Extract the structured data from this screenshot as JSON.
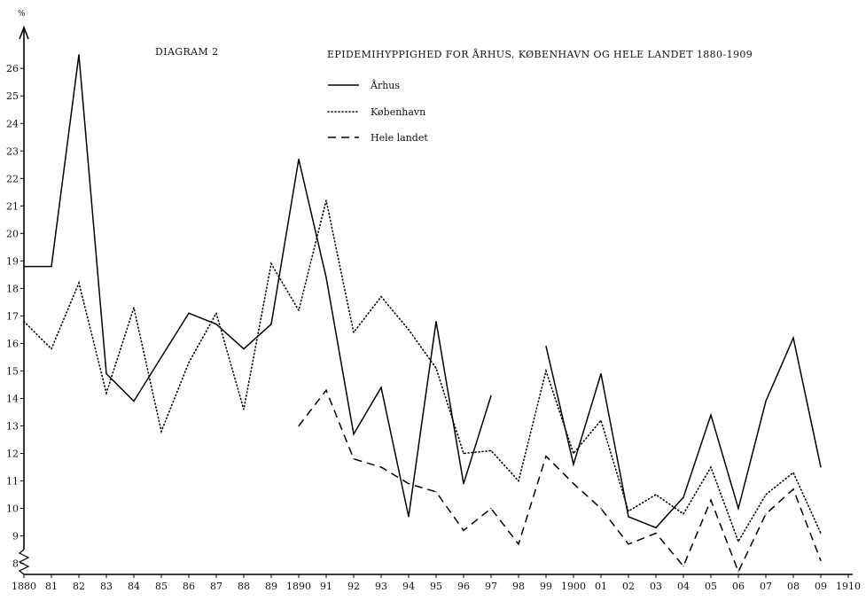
{
  "chart_data": {
    "type": "line",
    "label": "DIAGRAM 2",
    "title": "EPIDEMIHYPPIGHED FOR ÅRHUS, KØBENHAVN OG HELE LANDET 1880-1909",
    "ylabel": "%",
    "ylim": [
      7.6,
      27.2
    ],
    "xlim": [
      1880,
      1910
    ],
    "y_ticks": [
      8,
      9,
      10,
      11,
      12,
      13,
      14,
      15,
      16,
      17,
      18,
      19,
      20,
      21,
      22,
      23,
      24,
      25,
      26
    ],
    "x_ticks": [
      1880,
      1881,
      1882,
      1883,
      1884,
      1885,
      1886,
      1887,
      1888,
      1889,
      1890,
      1891,
      1892,
      1893,
      1894,
      1895,
      1896,
      1897,
      1898,
      1899,
      1900,
      1901,
      1902,
      1903,
      1904,
      1905,
      1906,
      1907,
      1908,
      1909,
      1910
    ],
    "x_tick_labels": [
      "1880",
      "81",
      "82",
      "83",
      "84",
      "85",
      "86",
      "87",
      "88",
      "89",
      "1890",
      "91",
      "92",
      "93",
      "94",
      "95",
      "96",
      "97",
      "98",
      "99",
      "1900",
      "01",
      "02",
      "03",
      "04",
      "05",
      "06",
      "07",
      "08",
      "09",
      "1910"
    ],
    "grid": false,
    "legend_position": "top-center",
    "series": [
      {
        "name": "Århus",
        "style": "solid",
        "segments": [
          [
            [
              1880,
              18.8
            ],
            [
              1881,
              18.8
            ],
            [
              1882,
              26.5
            ],
            [
              1883,
              14.9
            ],
            [
              1884,
              13.9
            ],
            [
              1885,
              15.5
            ],
            [
              1886,
              17.1
            ],
            [
              1887,
              16.7
            ],
            [
              1888,
              15.8
            ],
            [
              1889,
              16.7
            ],
            [
              1890,
              22.7
            ],
            [
              1891,
              18.4
            ],
            [
              1892,
              12.7
            ],
            [
              1893,
              14.4
            ],
            [
              1894,
              9.7
            ],
            [
              1895,
              16.8
            ],
            [
              1896,
              10.9
            ],
            [
              1897,
              14.1
            ]
          ],
          [
            [
              1899,
              15.9
            ],
            [
              1900,
              11.6
            ],
            [
              1901,
              14.9
            ],
            [
              1902,
              9.7
            ],
            [
              1903,
              9.3
            ],
            [
              1904,
              10.4
            ],
            [
              1905,
              13.4
            ],
            [
              1906,
              10.0
            ],
            [
              1907,
              13.9
            ],
            [
              1908,
              16.2
            ],
            [
              1909,
              11.5
            ]
          ]
        ]
      },
      {
        "name": "København",
        "style": "dotted",
        "segments": [
          [
            [
              1880,
              16.8
            ],
            [
              1881,
              15.8
            ],
            [
              1882,
              18.2
            ],
            [
              1883,
              14.2
            ],
            [
              1884,
              17.3
            ],
            [
              1885,
              12.8
            ],
            [
              1886,
              15.3
            ],
            [
              1887,
              17.1
            ],
            [
              1888,
              13.6
            ],
            [
              1889,
              18.9
            ],
            [
              1890,
              17.2
            ],
            [
              1891,
              21.2
            ],
            [
              1892,
              16.4
            ],
            [
              1893,
              17.7
            ],
            [
              1894,
              16.5
            ],
            [
              1895,
              15.1
            ],
            [
              1896,
              12.0
            ],
            [
              1897,
              12.1
            ],
            [
              1898,
              11.0
            ],
            [
              1899,
              15.0
            ],
            [
              1900,
              12.0
            ],
            [
              1901,
              13.2
            ],
            [
              1902,
              9.9
            ],
            [
              1903,
              10.5
            ],
            [
              1904,
              9.8
            ],
            [
              1905,
              11.5
            ],
            [
              1906,
              8.8
            ],
            [
              1907,
              10.5
            ],
            [
              1908,
              11.3
            ],
            [
              1909,
              9.1
            ]
          ]
        ]
      },
      {
        "name": "Hele landet",
        "style": "dashed",
        "segments": [
          [
            [
              1890,
              13.0
            ],
            [
              1891,
              14.3
            ],
            [
              1892,
              11.8
            ],
            [
              1893,
              11.5
            ],
            [
              1894,
              10.9
            ],
            [
              1895,
              10.6
            ],
            [
              1896,
              9.2
            ],
            [
              1897,
              10.0
            ],
            [
              1898,
              8.7
            ],
            [
              1899,
              11.9
            ],
            [
              1900,
              10.9
            ],
            [
              1901,
              10.0
            ],
            [
              1902,
              8.7
            ],
            [
              1903,
              9.1
            ],
            [
              1904,
              7.9
            ],
            [
              1905,
              10.3
            ],
            [
              1906,
              7.7
            ],
            [
              1907,
              9.8
            ],
            [
              1908,
              10.7
            ],
            [
              1909,
              8.1
            ]
          ]
        ]
      }
    ]
  }
}
